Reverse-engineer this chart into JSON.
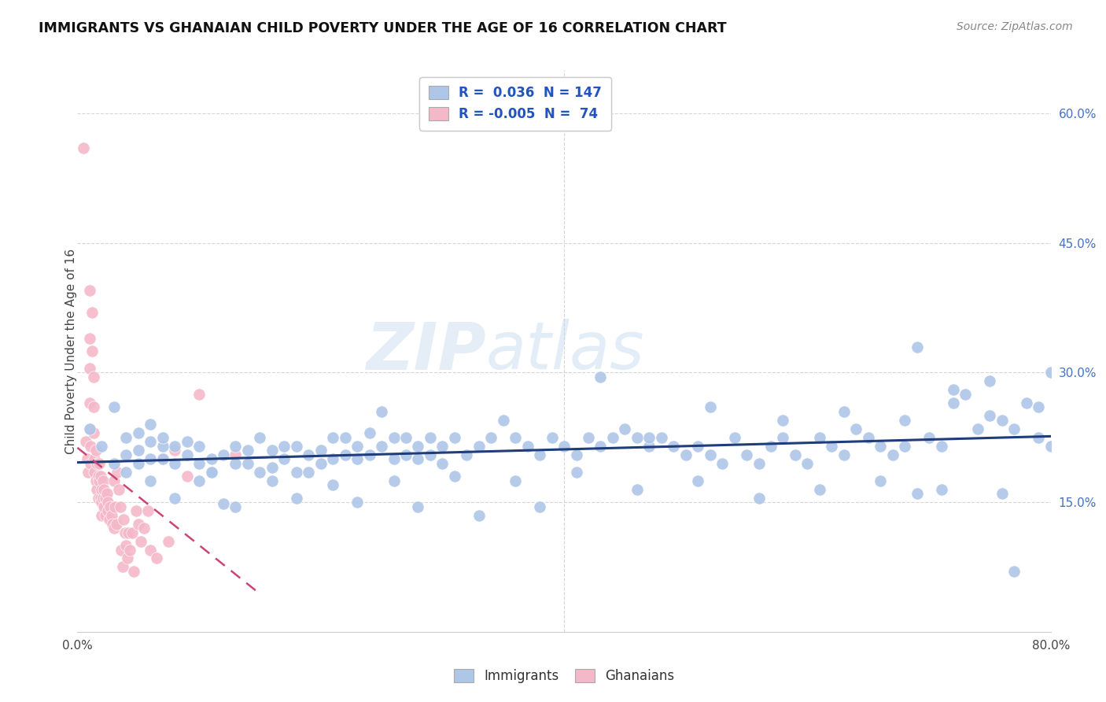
{
  "title": "IMMIGRANTS VS GHANAIAN CHILD POVERTY UNDER THE AGE OF 16 CORRELATION CHART",
  "source": "Source: ZipAtlas.com",
  "ylabel": "Child Poverty Under the Age of 16",
  "xlim": [
    0.0,
    0.8
  ],
  "ylim": [
    0.0,
    0.65
  ],
  "xticks": [
    0.0,
    0.1,
    0.2,
    0.3,
    0.4,
    0.5,
    0.6,
    0.7,
    0.8
  ],
  "xticklabels": [
    "0.0%",
    "",
    "",
    "",
    "",
    "",
    "",
    "",
    "80.0%"
  ],
  "yticks_right": [
    0.15,
    0.3,
    0.45,
    0.6
  ],
  "yticklabels_right": [
    "15.0%",
    "30.0%",
    "45.0%",
    "60.0%"
  ],
  "legend_r_blue": " 0.036",
  "legend_n_blue": "147",
  "legend_r_pink": "-0.005",
  "legend_n_pink": " 74",
  "blue_color": "#aec6e8",
  "pink_color": "#f4b8c8",
  "blue_line_color": "#1f3d7a",
  "pink_line_color": "#cc4477",
  "watermark_zip": "ZIP",
  "watermark_atlas": "atlas",
  "immigrants_scatter_x": [
    0.01,
    0.02,
    0.03,
    0.03,
    0.04,
    0.04,
    0.05,
    0.05,
    0.05,
    0.06,
    0.06,
    0.06,
    0.07,
    0.07,
    0.07,
    0.08,
    0.08,
    0.09,
    0.09,
    0.1,
    0.1,
    0.1,
    0.11,
    0.11,
    0.12,
    0.12,
    0.13,
    0.13,
    0.14,
    0.14,
    0.15,
    0.15,
    0.16,
    0.16,
    0.17,
    0.17,
    0.18,
    0.18,
    0.19,
    0.19,
    0.2,
    0.2,
    0.21,
    0.21,
    0.22,
    0.22,
    0.23,
    0.23,
    0.24,
    0.24,
    0.25,
    0.25,
    0.26,
    0.26,
    0.27,
    0.27,
    0.28,
    0.28,
    0.29,
    0.29,
    0.3,
    0.3,
    0.31,
    0.32,
    0.33,
    0.34,
    0.35,
    0.36,
    0.37,
    0.38,
    0.39,
    0.4,
    0.41,
    0.42,
    0.43,
    0.44,
    0.45,
    0.46,
    0.47,
    0.48,
    0.49,
    0.5,
    0.51,
    0.52,
    0.53,
    0.54,
    0.55,
    0.56,
    0.57,
    0.58,
    0.59,
    0.6,
    0.61,
    0.62,
    0.63,
    0.64,
    0.65,
    0.66,
    0.67,
    0.68,
    0.69,
    0.7,
    0.71,
    0.72,
    0.73,
    0.74,
    0.75,
    0.76,
    0.77,
    0.78,
    0.79,
    0.8,
    0.8,
    0.79,
    0.75,
    0.72,
    0.68,
    0.63,
    0.58,
    0.52,
    0.47,
    0.43,
    0.38,
    0.33,
    0.28,
    0.23,
    0.18,
    0.13,
    0.08,
    0.04,
    0.06,
    0.11,
    0.16,
    0.21,
    0.26,
    0.31,
    0.36,
    0.41,
    0.46,
    0.51,
    0.56,
    0.61,
    0.66,
    0.71,
    0.76,
    0.77,
    0.69
  ],
  "immigrants_scatter_y": [
    0.235,
    0.215,
    0.195,
    0.26,
    0.205,
    0.225,
    0.195,
    0.21,
    0.23,
    0.2,
    0.22,
    0.24,
    0.2,
    0.215,
    0.225,
    0.195,
    0.215,
    0.205,
    0.22,
    0.175,
    0.195,
    0.215,
    0.185,
    0.2,
    0.148,
    0.205,
    0.195,
    0.215,
    0.195,
    0.21,
    0.185,
    0.225,
    0.175,
    0.21,
    0.215,
    0.2,
    0.185,
    0.215,
    0.185,
    0.205,
    0.195,
    0.21,
    0.225,
    0.2,
    0.205,
    0.225,
    0.215,
    0.2,
    0.205,
    0.23,
    0.215,
    0.255,
    0.225,
    0.2,
    0.205,
    0.225,
    0.215,
    0.2,
    0.205,
    0.225,
    0.195,
    0.215,
    0.225,
    0.205,
    0.215,
    0.225,
    0.245,
    0.225,
    0.215,
    0.205,
    0.225,
    0.215,
    0.205,
    0.225,
    0.215,
    0.225,
    0.235,
    0.225,
    0.215,
    0.225,
    0.215,
    0.205,
    0.215,
    0.205,
    0.195,
    0.225,
    0.205,
    0.195,
    0.215,
    0.225,
    0.205,
    0.195,
    0.225,
    0.215,
    0.205,
    0.235,
    0.225,
    0.215,
    0.205,
    0.215,
    0.16,
    0.225,
    0.215,
    0.28,
    0.275,
    0.235,
    0.25,
    0.245,
    0.235,
    0.265,
    0.225,
    0.215,
    0.3,
    0.26,
    0.29,
    0.265,
    0.245,
    0.255,
    0.245,
    0.26,
    0.225,
    0.295,
    0.145,
    0.135,
    0.145,
    0.15,
    0.155,
    0.145,
    0.155,
    0.185,
    0.175,
    0.185,
    0.19,
    0.17,
    0.175,
    0.18,
    0.175,
    0.185,
    0.165,
    0.175,
    0.155,
    0.165,
    0.175,
    0.165,
    0.16,
    0.07,
    0.33
  ],
  "ghanaians_scatter_x": [
    0.005,
    0.007,
    0.008,
    0.009,
    0.01,
    0.01,
    0.01,
    0.01,
    0.01,
    0.011,
    0.011,
    0.012,
    0.012,
    0.013,
    0.013,
    0.013,
    0.014,
    0.014,
    0.015,
    0.015,
    0.016,
    0.016,
    0.017,
    0.017,
    0.018,
    0.018,
    0.019,
    0.019,
    0.02,
    0.02,
    0.02,
    0.021,
    0.021,
    0.022,
    0.022,
    0.023,
    0.023,
    0.024,
    0.025,
    0.025,
    0.026,
    0.027,
    0.028,
    0.029,
    0.03,
    0.03,
    0.031,
    0.032,
    0.033,
    0.034,
    0.035,
    0.036,
    0.037,
    0.038,
    0.039,
    0.04,
    0.041,
    0.042,
    0.043,
    0.045,
    0.046,
    0.048,
    0.05,
    0.052,
    0.055,
    0.058,
    0.06,
    0.065,
    0.07,
    0.075,
    0.08,
    0.09,
    0.1,
    0.13
  ],
  "ghanaians_scatter_y": [
    0.56,
    0.22,
    0.2,
    0.185,
    0.395,
    0.34,
    0.305,
    0.265,
    0.235,
    0.215,
    0.195,
    0.37,
    0.325,
    0.295,
    0.26,
    0.23,
    0.2,
    0.185,
    0.175,
    0.21,
    0.195,
    0.165,
    0.18,
    0.155,
    0.195,
    0.175,
    0.155,
    0.18,
    0.165,
    0.15,
    0.135,
    0.175,
    0.155,
    0.165,
    0.145,
    0.155,
    0.135,
    0.16,
    0.15,
    0.14,
    0.13,
    0.145,
    0.135,
    0.125,
    0.12,
    0.175,
    0.145,
    0.125,
    0.185,
    0.165,
    0.145,
    0.095,
    0.075,
    0.13,
    0.115,
    0.1,
    0.085,
    0.115,
    0.095,
    0.115,
    0.07,
    0.14,
    0.125,
    0.105,
    0.12,
    0.14,
    0.095,
    0.085,
    0.2,
    0.105,
    0.21,
    0.18,
    0.275,
    0.205
  ]
}
